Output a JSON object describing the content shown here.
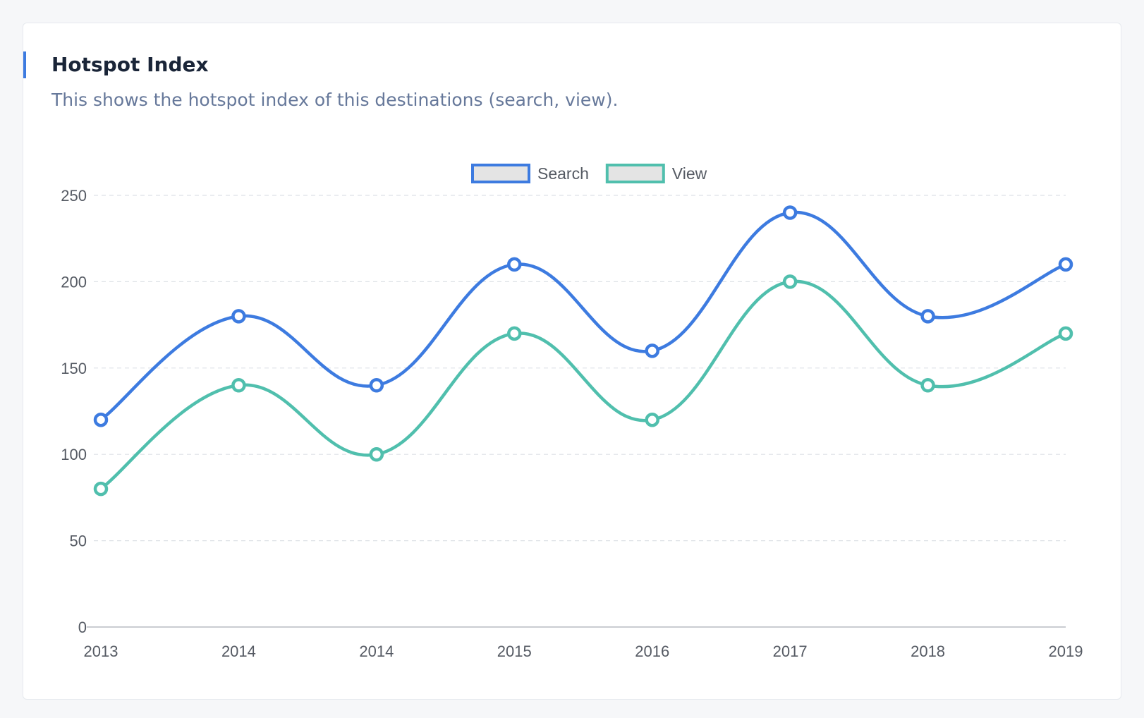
{
  "card": {
    "title": "Hotspot Index",
    "subtitle": "This shows the hotspot index of this destinations (search, view)."
  },
  "chart_data": {
    "type": "line",
    "categories": [
      "2013",
      "2014",
      "2014",
      "2015",
      "2016",
      "2017",
      "2018",
      "2019"
    ],
    "series": [
      {
        "name": "Search",
        "values": [
          120,
          180,
          140,
          210,
          160,
          240,
          180,
          210
        ],
        "color": "#3d7be0"
      },
      {
        "name": "View",
        "values": [
          80,
          140,
          100,
          170,
          120,
          200,
          140,
          170
        ],
        "color": "#50bfad"
      }
    ],
    "yticks": [
      0,
      50,
      100,
      150,
      200,
      250
    ],
    "ylim": [
      0,
      250
    ],
    "grid": true,
    "legend": "top-center",
    "smooth": true
  }
}
